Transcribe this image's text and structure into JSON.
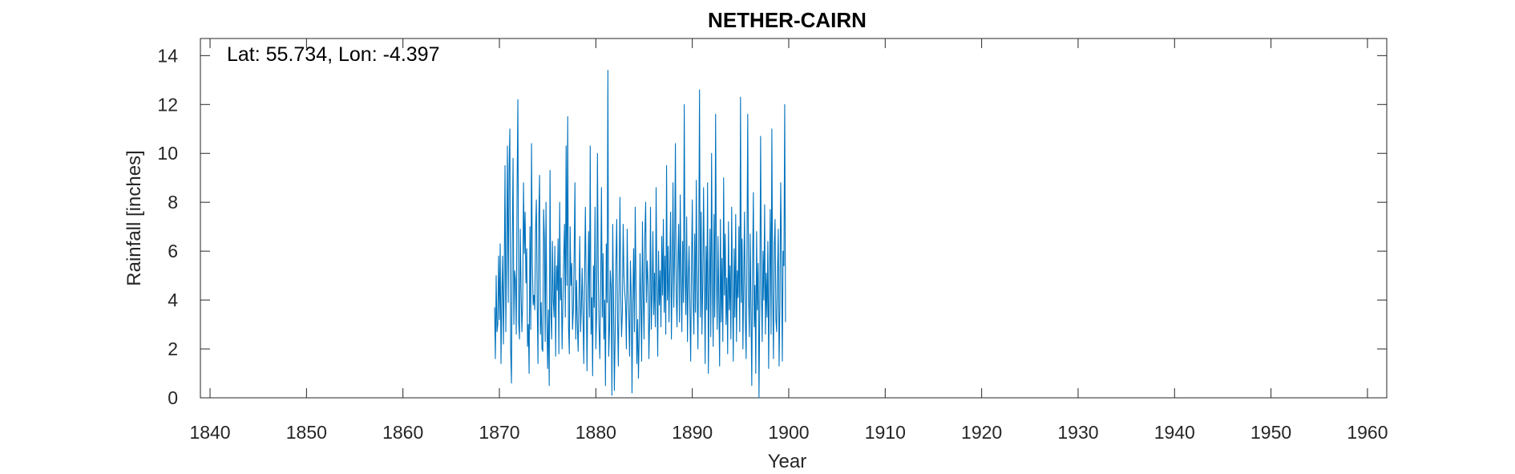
{
  "chart_data": {
    "type": "line",
    "title": "NETHER-CAIRN",
    "xlabel": "Year",
    "ylabel": "Rainfall [inches]",
    "annotation": "Lat: 55.734, Lon: -4.397",
    "xlim": [
      1839,
      1962
    ],
    "ylim": [
      0,
      14.7
    ],
    "xticks": [
      1840,
      1850,
      1860,
      1870,
      1880,
      1890,
      1900,
      1910,
      1920,
      1930,
      1940,
      1950,
      1960
    ],
    "yticks": [
      0,
      2,
      4,
      6,
      8,
      10,
      12,
      14
    ],
    "grid": false,
    "series": [
      {
        "color": "#0072BD",
        "x_start": 1869.5,
        "x_step": 0.08333,
        "values": [
          3.7,
          1.6,
          5.0,
          2.7,
          3.0,
          5.8,
          3.2,
          6.3,
          1.4,
          4.1,
          5.8,
          2.2,
          4.9,
          9.5,
          2.7,
          6.0,
          10.3,
          3.9,
          9.3,
          11.0,
          2.0,
          0.6,
          6.4,
          9.8,
          3.0,
          5.2,
          4.8,
          2.6,
          8.6,
          12.2,
          3.1,
          2.4,
          6.9,
          4.3,
          2.7,
          4.0,
          8.8,
          5.9,
          7.6,
          4.7,
          6.1,
          2.1,
          3.0,
          1.0,
          7.0,
          2.8,
          10.4,
          5.5,
          3.8,
          4.2,
          3.6,
          6.9,
          8.1,
          4.0,
          1.4,
          7.3,
          9.1,
          2.6,
          3.9,
          2.0,
          1.9,
          7.7,
          6.5,
          2.3,
          8.0,
          3.4,
          1.2,
          3.6,
          0.5,
          9.3,
          3.5,
          2.4,
          6.4,
          4.0,
          3.3,
          6.2,
          1.7,
          5.4,
          4.4,
          6.5,
          1.8,
          8.0,
          4.0,
          4.9,
          2.0,
          3.9,
          5.7,
          7.1,
          3.3,
          10.3,
          4.6,
          11.5,
          2.9,
          1.8,
          7.0,
          4.6,
          5.5,
          2.8,
          3.6,
          5.8,
          8.8,
          2.4,
          4.8,
          3.0,
          1.9,
          4.0,
          6.6,
          2.7,
          3.7,
          5.3,
          3.4,
          1.4,
          5.0,
          7.8,
          4.4,
          1.1,
          4.2,
          6.8,
          3.3,
          10.3,
          2.6,
          4.1,
          0.9,
          5.4,
          3.7,
          7.8,
          2.0,
          3.5,
          10.0,
          5.2,
          2.8,
          1.6,
          4.6,
          8.6,
          3.3,
          5.9,
          2.4,
          4.0,
          0.5,
          6.3,
          3.9,
          13.4,
          1.7,
          2.8,
          5.2,
          4.5,
          0.1,
          7.1,
          4.0,
          0.3,
          2.5,
          5.6,
          7.3,
          3.2,
          1.3,
          4.8,
          8.2,
          4.2,
          2.5,
          3.5,
          7.1,
          5.0,
          4.3,
          3.8,
          2.0,
          6.9,
          4.4,
          3.3,
          1.7,
          5.6,
          4.2,
          0.2,
          3.9,
          6.1,
          2.7,
          7.8,
          4.6,
          1.4,
          3.2,
          0.8,
          2.6,
          5.9,
          3.8,
          1.5,
          7.2,
          4.1,
          2.4,
          6.7,
          8.0,
          3.9,
          5.6,
          4.7,
          1.6,
          3.3,
          7.8,
          2.8,
          4.3,
          6.8,
          3.4,
          5.1,
          2.9,
          8.6,
          4.5,
          1.7,
          6.0,
          3.8,
          5.2,
          2.9,
          6.6,
          4.2,
          7.3,
          3.5,
          5.8,
          2.6,
          9.5,
          4.0,
          6.2,
          3.1,
          5.3,
          7.6,
          2.4,
          4.9,
          8.8,
          3.7,
          6.0,
          10.4,
          4.3,
          2.9,
          5.6,
          7.1,
          3.1,
          8.3,
          4.6,
          2.7,
          6.4,
          3.9,
          12.0,
          5.0,
          3.4,
          7.4,
          2.3,
          4.9,
          6.2,
          3.7,
          1.5,
          5.3,
          8.1,
          4.0,
          2.6,
          6.7,
          3.5,
          8.9,
          4.5,
          2.0,
          5.9,
          12.6,
          3.3,
          7.6,
          2.6,
          4.6,
          8.6,
          5.1,
          1.4,
          6.2,
          3.6,
          8.8,
          1.0,
          4.2,
          6.9,
          2.5,
          10.0,
          4.7,
          2.1,
          7.5,
          3.3,
          11.6,
          5.2,
          2.8,
          6.6,
          4.0,
          1.3,
          7.3,
          3.1,
          5.7,
          2.3,
          9.0,
          4.2,
          6.7,
          3.0,
          4.9,
          1.8,
          7.2,
          3.6,
          5.4,
          2.4,
          7.8,
          4.5,
          1.5,
          6.1,
          3.3,
          7.5,
          2.3,
          5.2,
          4.1,
          7.0,
          2.7,
          12.3,
          3.9,
          6.5,
          2.0,
          4.8,
          7.6,
          3.3,
          1.6,
          5.9,
          11.6,
          4.2,
          2.5,
          6.7,
          3.7,
          0.5,
          5.3,
          8.4,
          2.9,
          4.6,
          1.0,
          6.8,
          3.6,
          5.5,
          0.0,
          3.9,
          10.7,
          4.5,
          2.3,
          6.0,
          4.0,
          7.9,
          2.6,
          5.1,
          3.3,
          6.4,
          1.2,
          4.8,
          7.7,
          2.6,
          11.0,
          4.3,
          1.6,
          6.2,
          7.3,
          3.2,
          2.7,
          5.0,
          6.9,
          1.3,
          3.8,
          8.8,
          5.8,
          1.5,
          6.0,
          5.4,
          12.0,
          3.1
        ]
      }
    ]
  }
}
